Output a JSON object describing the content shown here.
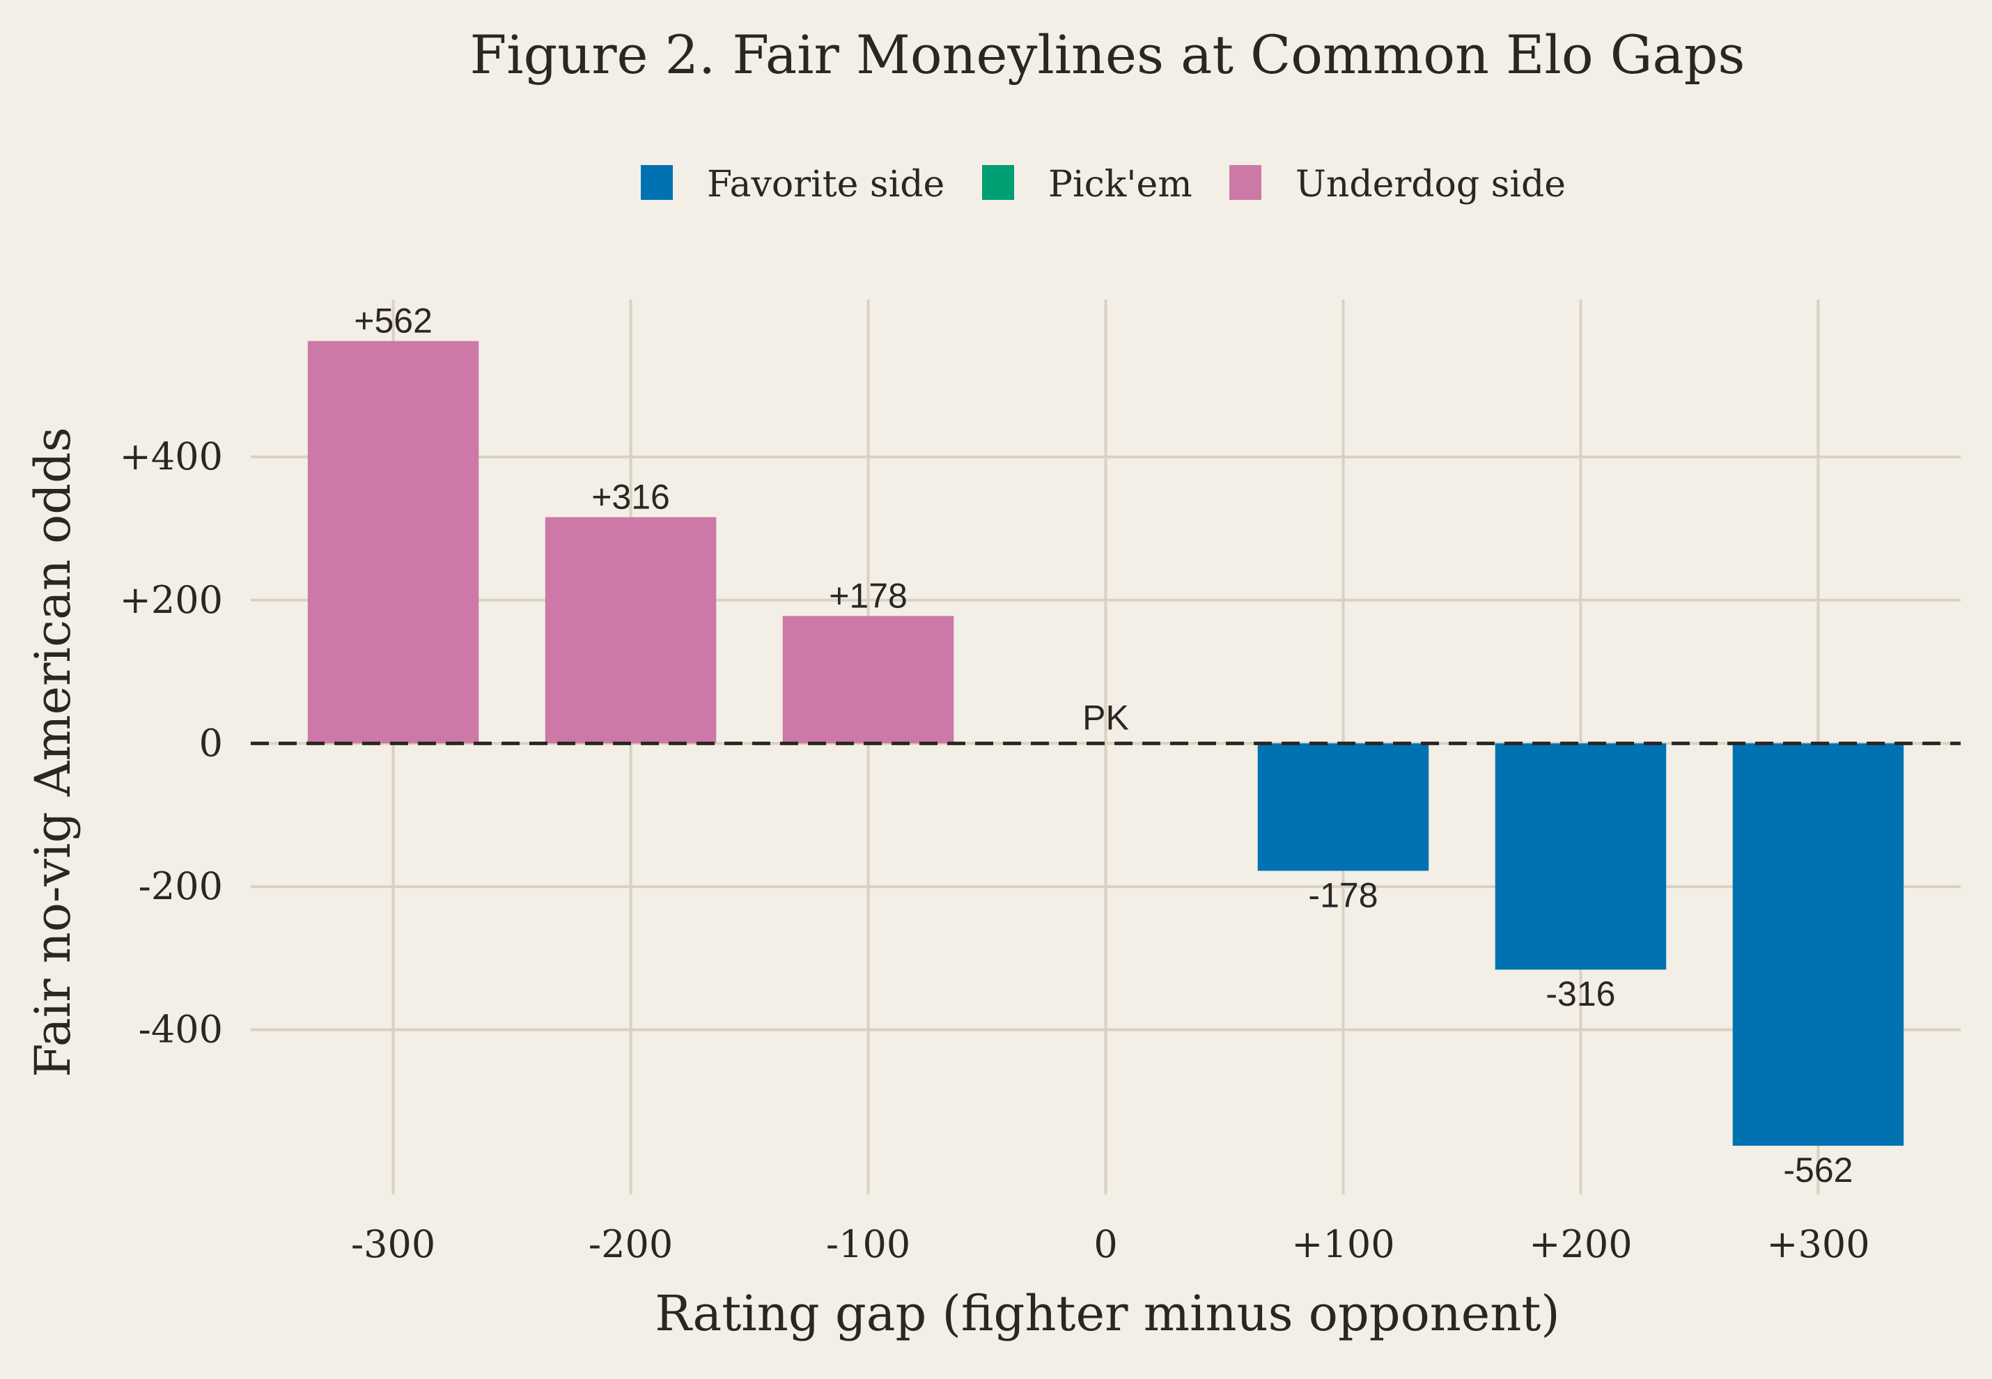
{
  "chart_data": {
    "type": "bar",
    "title": "Figure 2. Fair Moneylines at Common Elo Gaps",
    "xlabel": "Rating gap (fighter minus opponent)",
    "ylabel": "Fair no-vig American odds",
    "categories": [
      -300,
      -200,
      -100,
      0,
      100,
      200,
      300
    ],
    "category_labels": [
      "-300",
      "-200",
      "-100",
      "0",
      "+100",
      "+200",
      "+300"
    ],
    "values": [
      562,
      316,
      178,
      0,
      -178,
      -316,
      -562
    ],
    "bar_labels": [
      "+562",
      "+316",
      "+178",
      "PK",
      "-178",
      "-316",
      "-562"
    ],
    "groups": [
      "Underdog side",
      "Underdog side",
      "Underdog side",
      "Pick'em",
      "Favorite side",
      "Favorite side",
      "Favorite side"
    ],
    "legend": [
      {
        "name": "Favorite side",
        "color": "#0072b2"
      },
      {
        "name": "Pick'em",
        "color": "#009e73"
      },
      {
        "name": "Underdog side",
        "color": "#cc79a7"
      }
    ],
    "legend_position": "top-center",
    "xlim": [
      -360,
      360
    ],
    "ylim": [
      -630,
      620
    ],
    "yticks": [
      -400,
      -200,
      0,
      200,
      400
    ],
    "ytick_labels": [
      "-400",
      "-200",
      "0",
      "+200",
      "+400"
    ],
    "reference_line": {
      "y": 0,
      "style": "dashed"
    },
    "grid": true
  }
}
